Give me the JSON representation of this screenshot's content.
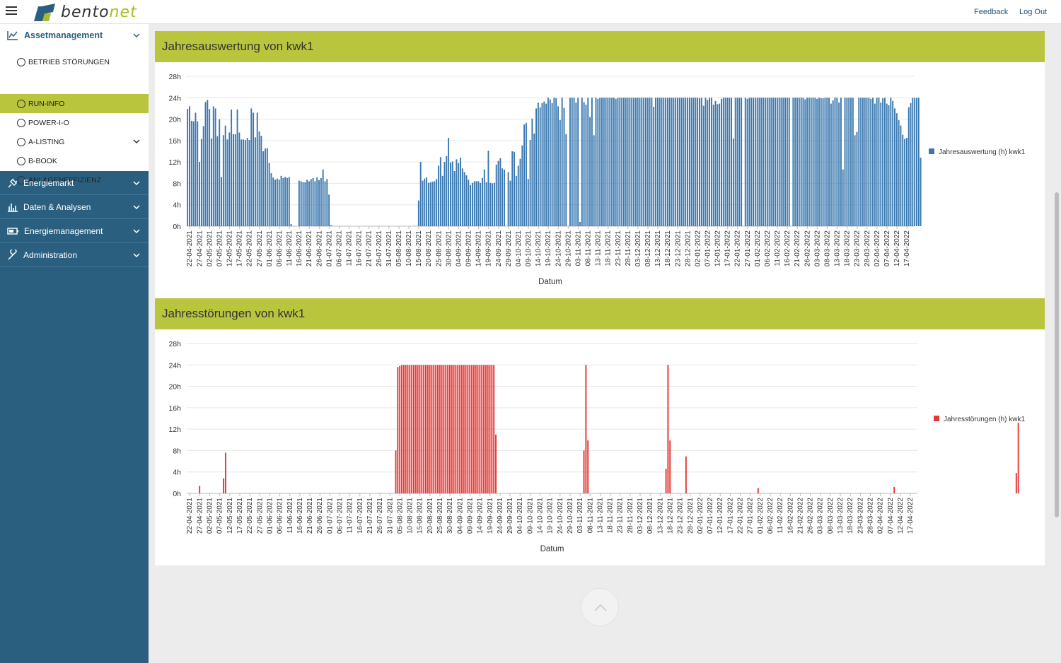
{
  "app": {
    "logo_text_1": "bento",
    "logo_text_2": "net"
  },
  "topbar": {
    "feedback": "Feedback",
    "logout": "Log Out"
  },
  "sidebar": {
    "section_title": "Assetmanagement",
    "items": [
      {
        "label": "BETRIEB STÖRUNGEN",
        "active": false
      },
      {
        "label": "RUN-INFO",
        "active": true
      },
      {
        "label": "POWER-I-O",
        "active": false
      },
      {
        "label": "A-LISTING",
        "active": false
      },
      {
        "label": "B-BOOK",
        "active": false
      },
      {
        "label": "ANLAGENEFFIZIENZ",
        "active": false
      }
    ],
    "groups": [
      {
        "label": "Energiemarkt",
        "icon": "plug-icon"
      },
      {
        "label": "Daten & Analysen",
        "icon": "bar-chart-icon"
      },
      {
        "label": "Energiemanagement",
        "icon": "battery-icon"
      },
      {
        "label": "Administration",
        "icon": "wrench-icon"
      }
    ]
  },
  "panels": [
    {
      "title": "Jahresauswertung von kwk1"
    },
    {
      "title": "Jahresstörungen von kwk1"
    }
  ],
  "chart_data": [
    {
      "type": "bar",
      "title": "",
      "xlabel": "Datum",
      "ylabel": "",
      "ylim": [
        0,
        28
      ],
      "y_ticks": [
        "0h",
        "4h",
        "8h",
        "12h",
        "16h",
        "20h",
        "24h",
        "28h"
      ],
      "grid": true,
      "legend_position": "right",
      "x_start": "2021-04-21",
      "x_end": "2022-04-21",
      "x_tick_labels": [
        "22-04-2021",
        "27-04-2021",
        "02-05-2021",
        "07-05-2021",
        "12-05-2021",
        "17-05-2021",
        "22-05-2021",
        "27-05-2021",
        "01-06-2021",
        "06-06-2021",
        "11-06-2021",
        "16-06-2021",
        "21-06-2021",
        "26-06-2021",
        "01-07-2021",
        "06-07-2021",
        "11-07-2021",
        "16-07-2021",
        "21-07-2021",
        "26-07-2021",
        "31-07-2021",
        "05-08-2021",
        "10-08-2021",
        "15-08-2021",
        "20-08-2021",
        "25-08-2021",
        "30-08-2021",
        "04-09-2021",
        "09-09-2021",
        "14-09-2021",
        "19-09-2021",
        "24-09-2021",
        "29-09-2021",
        "04-10-2021",
        "09-10-2021",
        "14-10-2021",
        "19-10-2021",
        "24-10-2021",
        "29-10-2021",
        "03-11-2021",
        "08-11-2021",
        "13-11-2021",
        "18-11-2021",
        "23-11-2021",
        "28-11-2021",
        "03-12-2021",
        "08-12-2021",
        "13-12-2021",
        "18-12-2021",
        "23-12-2021",
        "28-12-2021",
        "02-01-2022",
        "07-01-2022",
        "12-01-2022",
        "17-01-2022",
        "22-01-2022",
        "27-01-2022",
        "01-02-2022",
        "06-02-2022",
        "11-02-2022",
        "16-02-2022",
        "21-02-2022",
        "26-02-2022",
        "03-03-2022",
        "08-03-2022",
        "13-03-2022",
        "18-03-2022",
        "23-03-2022",
        "28-03-2022",
        "02-04-2022",
        "07-04-2022",
        "12-04-2022",
        "17-04-2022"
      ],
      "series": [
        {
          "name": "Jahresauswertung (h) kwk1",
          "color": "#3a78b0",
          "values": [
            21.9,
            22.4,
            19.7,
            19.6,
            21.2,
            19.6,
            12.0,
            16.3,
            18.7,
            23.2,
            23.6,
            21.9,
            16.4,
            22.4,
            22.0,
            16.8,
            20.0,
            9.2,
            17.0,
            18.8,
            16.2,
            17.5,
            21.8,
            17.2,
            17.2,
            21.8,
            17.5,
            16.2,
            16.2,
            16.1,
            16.5,
            16.1,
            22.0,
            21.2,
            16.6,
            21.2,
            17.7,
            16.9,
            14.0,
            14.5,
            14.6,
            11.8,
            9.9,
            9.1,
            8.7,
            8.9,
            8.7,
            9.4,
            9.0,
            9.2,
            9.0,
            9.2,
            0.4,
            0,
            0,
            0,
            8.5,
            8.4,
            8.2,
            8.2,
            8.7,
            8.4,
            8.8,
            9.0,
            8.4,
            9.1,
            8.6,
            9.0,
            10.6,
            8.4,
            8.8,
            5.9,
            0.2,
            0,
            0,
            0,
            0,
            0,
            0,
            0,
            0,
            0,
            0,
            0,
            0,
            0,
            0,
            0,
            0,
            0,
            0,
            0,
            0,
            0,
            0,
            0,
            0,
            0,
            0,
            0,
            0,
            0,
            0,
            0,
            0,
            0,
            0,
            0,
            0,
            0,
            0,
            0,
            0,
            0,
            0,
            0,
            4.8,
            12.0,
            8.5,
            8.9,
            9.1,
            8.1,
            8.2,
            8.3,
            8.4,
            8.8,
            11.3,
            12.9,
            9.4,
            12.0,
            13.1,
            16.5,
            11.9,
            12.1,
            10.3,
            12.5,
            11.8,
            12.8,
            10.8,
            10.1,
            9.5,
            8.7,
            7.7,
            8.1,
            8.4,
            8.4,
            8.4,
            8.1,
            9.0,
            10.6,
            8.2,
            14.1,
            8.1,
            8.0,
            8.1,
            11.5,
            12.2,
            12.7,
            10.8,
            10.6,
            0,
            10.1,
            8.5,
            14.0,
            13.9,
            9.4,
            11.3,
            12.6,
            15.1,
            19.0,
            19.3,
            8.8,
            16.1,
            20.1,
            17.3,
            22.0,
            23.1,
            22.2,
            23.0,
            23.3,
            22.9,
            24.0,
            23.7,
            23.0,
            24.0,
            23.9,
            22.4,
            19.8,
            24.0,
            22.1,
            17.2,
            0,
            24.0,
            24.0,
            24.0,
            23.1,
            24.0,
            0.8,
            24.0,
            23.2,
            22.7,
            24.0,
            20.4,
            24.0,
            17.0,
            24.0,
            23.8,
            24.0,
            24.0,
            24.0,
            24.0,
            24.0,
            24.0,
            24.0,
            24.0,
            23.8,
            24.0,
            24.0,
            24.0,
            24.0,
            24.0,
            24.0,
            24.0,
            24.0,
            24.0,
            24.0,
            24.0,
            24.0,
            24.0,
            24.0,
            24.0,
            24.0,
            24.0,
            24.0,
            22.3,
            24.0,
            24.0,
            24.0,
            24.0,
            24.0,
            24.0,
            24.0,
            24.0,
            24.0,
            24.0,
            24.0,
            24.0,
            24.0,
            24.0,
            24.0,
            24.0,
            24.0,
            24.0,
            24.0,
            24.0,
            24.0,
            24.0,
            23.9,
            24.0,
            22.5,
            24.0,
            23.6,
            24.0,
            24.0,
            22.7,
            23.4,
            22.8,
            22.9,
            23.8,
            24.0,
            24.0,
            24.0,
            24.0,
            24.0,
            16.4,
            24.0,
            24.0,
            24.0,
            24.0,
            0,
            24.0,
            23.8,
            24.0,
            24.0,
            24.0,
            24.0,
            24.0,
            24.0,
            24.0,
            24.0,
            24.0,
            24.0,
            24.0,
            24.0,
            24.0,
            24.0,
            24.0,
            24.0,
            24.0,
            24.0,
            24.0,
            24.0,
            24.0,
            0,
            24.0,
            24.0,
            24.0,
            24.0,
            24.0,
            24.0,
            23.7,
            24.0,
            24.0,
            24.0,
            24.0,
            24.0,
            23.8,
            24.0,
            23.9,
            23.9,
            24.0,
            24.0,
            24.0,
            22.9,
            23.5,
            24.0,
            24.0,
            23.1,
            24.0,
            10.6,
            24.0,
            24.0,
            24.0,
            24.0,
            24.0,
            17.0,
            17.6,
            24.0,
            24.0,
            24.0,
            24.0,
            24.0,
            24.0,
            23.8,
            24.0,
            22.9,
            24.0,
            24.0,
            23.1,
            23.9,
            24.0,
            22.9,
            22.6,
            24.0,
            23.4,
            22.0,
            21.1,
            19.8,
            18.8,
            17.1,
            16.3,
            16.5,
            22.2,
            23.0,
            24.0,
            24.0,
            24.0,
            24.0,
            12.8,
            0,
            0,
            0,
            0,
            0,
            0,
            0,
            0,
            0,
            0,
            0,
            0,
            0,
            0,
            0,
            0,
            0,
            0
          ]
        }
      ]
    },
    {
      "type": "bar",
      "title": "",
      "xlabel": "Datum",
      "ylabel": "",
      "ylim": [
        0,
        28
      ],
      "y_ticks": [
        "0h",
        "4h",
        "8h",
        "12h",
        "16h",
        "20h",
        "24h",
        "28h"
      ],
      "grid": true,
      "legend_position": "right",
      "x_start": "2021-04-21",
      "x_end": "2022-04-21",
      "x_tick_labels": [
        "22-04-2021",
        "27-04-2021",
        "02-05-2021",
        "07-05-2021",
        "12-05-2021",
        "17-05-2021",
        "22-05-2021",
        "27-05-2021",
        "01-06-2021",
        "06-06-2021",
        "11-06-2021",
        "16-06-2021",
        "21-06-2021",
        "26-06-2021",
        "01-07-2021",
        "06-07-2021",
        "11-07-2021",
        "16-07-2021",
        "21-07-2021",
        "26-07-2021",
        "31-07-2021",
        "05-08-2021",
        "10-08-2021",
        "15-08-2021",
        "20-08-2021",
        "25-08-2021",
        "30-08-2021",
        "04-09-2021",
        "09-09-2021",
        "14-09-2021",
        "19-09-2021",
        "24-09-2021",
        "29-09-2021",
        "04-10-2021",
        "09-10-2021",
        "14-10-2021",
        "19-10-2021",
        "24-10-2021",
        "29-10-2021",
        "03-11-2021",
        "08-11-2021",
        "13-11-2021",
        "18-11-2021",
        "23-11-2021",
        "28-11-2021",
        "03-12-2021",
        "08-12-2021",
        "13-12-2021",
        "18-12-2021",
        "23-12-2021",
        "28-12-2021",
        "02-01-2022",
        "07-01-2022",
        "12-01-2022",
        "17-01-2022",
        "22-01-2022",
        "27-01-2022",
        "01-02-2022",
        "06-02-2022",
        "11-02-2022",
        "16-02-2022",
        "21-02-2022",
        "26-02-2022",
        "03-03-2022",
        "08-03-2022",
        "13-03-2022",
        "18-03-2022",
        "23-03-2022",
        "28-03-2022",
        "02-04-2022",
        "07-04-2022",
        "12-04-2022",
        "17-04-2022"
      ],
      "series": [
        {
          "name": "Jahresstörungen (h) kwk1",
          "color": "#e53935",
          "values": [
            0,
            0,
            0,
            0,
            0,
            0,
            1.4,
            0,
            0,
            0,
            0,
            0,
            0,
            0,
            0,
            0,
            0,
            0,
            2.8,
            7.6,
            0,
            0,
            0,
            0,
            0,
            0,
            0,
            0,
            0,
            0,
            0,
            0,
            0,
            0,
            0,
            0,
            0,
            0,
            0,
            0,
            0,
            0,
            0,
            0,
            0,
            0,
            0,
            0,
            0,
            0,
            0,
            0,
            0,
            0,
            0,
            0,
            0,
            0,
            0,
            0,
            0,
            0,
            0,
            0,
            0,
            0,
            0,
            0,
            0,
            0,
            0,
            0,
            0,
            0,
            0,
            0,
            0,
            0,
            0,
            0,
            0,
            0,
            0,
            0,
            0,
            0,
            0,
            0,
            0,
            0,
            0,
            0,
            0,
            0,
            0,
            0,
            0,
            0,
            0,
            0,
            0,
            0,
            0,
            0,
            8.0,
            23.6,
            23.8,
            24.0,
            24.0,
            24.0,
            24.0,
            24.0,
            24.0,
            24.0,
            24.0,
            24.0,
            24.0,
            24.0,
            24.0,
            24.0,
            24.0,
            24.0,
            24.0,
            24.0,
            24.0,
            24.0,
            24.0,
            24.0,
            24.0,
            24.0,
            24.0,
            24.0,
            24.0,
            24.0,
            24.0,
            24.0,
            24.0,
            24.0,
            24.0,
            24.0,
            24.0,
            24.0,
            24.0,
            24.0,
            24.0,
            24.0,
            24.0,
            24.0,
            24.0,
            24.0,
            24.0,
            24.0,
            24.0,
            24.0,
            11.0,
            0,
            0,
            0,
            0,
            0,
            0,
            0,
            0,
            0,
            0,
            0,
            0,
            0,
            0,
            0,
            0,
            0,
            0,
            0,
            0,
            0,
            0,
            0,
            0,
            0,
            0,
            0,
            0,
            0,
            0,
            0,
            0,
            0,
            0,
            0,
            0,
            0,
            0,
            0,
            0,
            0,
            0,
            0,
            8.0,
            24.0,
            9.9,
            0,
            0,
            0,
            0,
            0,
            0,
            0,
            0,
            0,
            0,
            0,
            0,
            0,
            0,
            0,
            0,
            0,
            0,
            0,
            0,
            0,
            0,
            0,
            0,
            0,
            0,
            0,
            0,
            0,
            0,
            0,
            0,
            0,
            0,
            0,
            0,
            0,
            0,
            4.6,
            24.0,
            9.9,
            0,
            0,
            0,
            0,
            0,
            0,
            0,
            6.9,
            0,
            0,
            0,
            0,
            0,
            0,
            0,
            0,
            0,
            0,
            0,
            0,
            0,
            0,
            0,
            0,
            0,
            0,
            0,
            0,
            0,
            0,
            0,
            0,
            0,
            0,
            0,
            0,
            0,
            0,
            0,
            0,
            0,
            0,
            0,
            1.0,
            0,
            0,
            0,
            0,
            0,
            0,
            0,
            0,
            0,
            0,
            0,
            0,
            0,
            0,
            0,
            0,
            0,
            0,
            0,
            0,
            0,
            0,
            0,
            0,
            0,
            0,
            0,
            0,
            0,
            0,
            0,
            0,
            0,
            0,
            0,
            0,
            0,
            0,
            0,
            0,
            0,
            0,
            0,
            0,
            0,
            0,
            0,
            0,
            0,
            0,
            0,
            0,
            0,
            0,
            0,
            0,
            0,
            0,
            0,
            0,
            0,
            0,
            0,
            0,
            0,
            0,
            0,
            1.2,
            0,
            0,
            0,
            0,
            0,
            0,
            0,
            0,
            0,
            0,
            0,
            0,
            0,
            0,
            0,
            0,
            0,
            0,
            0,
            0,
            0,
            0,
            0,
            0,
            0,
            0,
            0,
            0,
            0,
            0,
            0,
            0,
            0,
            0,
            0,
            0,
            0,
            0,
            0,
            0,
            0,
            0,
            0,
            0,
            0,
            0,
            0,
            0,
            0,
            0,
            0,
            0,
            0,
            0,
            0,
            0,
            0,
            0,
            0,
            0,
            3.8,
            13.2,
            0,
            0,
            0,
            0,
            0,
            0,
            0,
            0,
            0,
            0,
            0,
            0,
            0,
            0,
            0,
            0,
            0,
            0,
            0,
            0,
            0,
            0,
            0,
            0,
            0,
            0,
            0,
            0,
            0,
            0,
            0,
            0,
            0,
            0,
            0,
            0,
            0,
            0,
            0,
            0,
            0,
            0,
            0,
            0,
            0,
            0,
            0,
            0,
            0,
            0,
            0,
            0,
            0,
            0,
            0,
            0,
            0,
            0,
            0,
            0
          ]
        }
      ]
    }
  ]
}
